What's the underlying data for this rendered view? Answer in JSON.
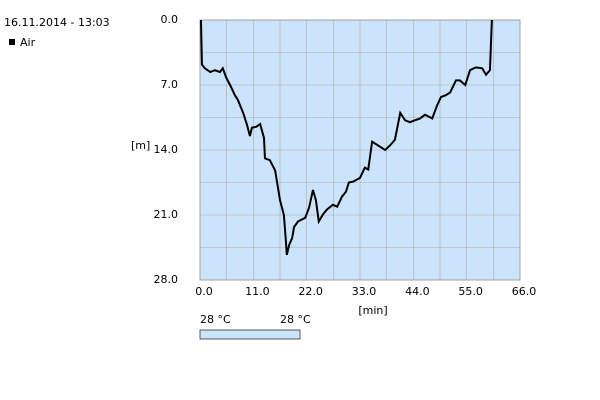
{
  "chart_data": {
    "type": "line",
    "subtitle": "16.11.2014 - 13:03",
    "x_label": "[min]",
    "y_label": "[m]",
    "series": [
      {
        "name": "Air",
        "color": "#000000",
        "x": [
          0.2,
          0.4,
          1.0,
          2.1,
          3.1,
          4.1,
          4.7,
          5.4,
          6.2,
          7.2,
          7.8,
          8.9,
          9.7,
          10.3,
          10.7,
          11.6,
          12.4,
          13.2,
          13.4,
          14.4,
          15.5,
          16.5,
          17.3,
          17.7,
          17.9,
          18.4,
          19.0,
          19.4,
          20.2,
          21.7,
          22.5,
          23.3,
          23.9,
          24.5,
          25.4,
          26.2,
          27.4,
          28.3,
          29.3,
          30.1,
          30.7,
          31.6,
          33.0,
          34.0,
          34.7,
          35.5,
          36.7,
          38.2,
          39.2,
          40.2,
          41.3,
          42.3,
          43.3,
          44.3,
          45.4,
          46.4,
          47.9,
          48.9,
          49.7,
          50.7,
          51.6,
          52.8,
          53.6,
          54.7,
          55.7,
          56.9,
          58.2,
          59.0,
          59.8,
          60.2
        ],
        "values": [
          0,
          4.8,
          5.2,
          5.6,
          5.4,
          5.6,
          5.2,
          6.2,
          7.0,
          8.1,
          8.6,
          10.0,
          11.3,
          12.5,
          11.6,
          11.5,
          11.2,
          12.7,
          14.9,
          15.1,
          16.2,
          19.4,
          21.0,
          23.7,
          25.3,
          24.2,
          23.5,
          22.3,
          21.7,
          21.3,
          20.2,
          18.3,
          19.4,
          21.7,
          20.9,
          20.4,
          19.9,
          20.1,
          19.0,
          18.5,
          17.5,
          17.4,
          17.0,
          15.9,
          16.1,
          13.1,
          13.5,
          14.0,
          13.5,
          12.9,
          10.0,
          10.8,
          11.0,
          10.8,
          10.6,
          10.2,
          10.6,
          9.2,
          8.3,
          8.1,
          7.8,
          6.5,
          6.5,
          7.0,
          5.4,
          5.1,
          5.2,
          5.9,
          5.4,
          0
        ]
      }
    ],
    "xlim": [
      0,
      66
    ],
    "xticks": [
      {
        "value": 0,
        "label": "0.0"
      },
      {
        "value": 11,
        "label": "11.0"
      },
      {
        "value": 22,
        "label": "22.0"
      },
      {
        "value": 33,
        "label": "33.0"
      },
      {
        "value": 44,
        "label": "44.0"
      },
      {
        "value": 55,
        "label": "55.0"
      },
      {
        "value": 66,
        "label": "66.0"
      }
    ],
    "ylim": [
      28,
      0
    ],
    "yticks": [
      {
        "value": 0,
        "label": "0.0"
      },
      {
        "value": 7,
        "label": "7.0"
      },
      {
        "value": 14,
        "label": "14.0"
      },
      {
        "value": 21,
        "label": "21.0"
      },
      {
        "value": 28,
        "label": "28.0"
      }
    ],
    "grid": true,
    "plot_color": "#cce4fb",
    "temperature_scale": {
      "labels": [
        "28 °C",
        "28 °C"
      ],
      "color": "#cce4fb"
    }
  }
}
